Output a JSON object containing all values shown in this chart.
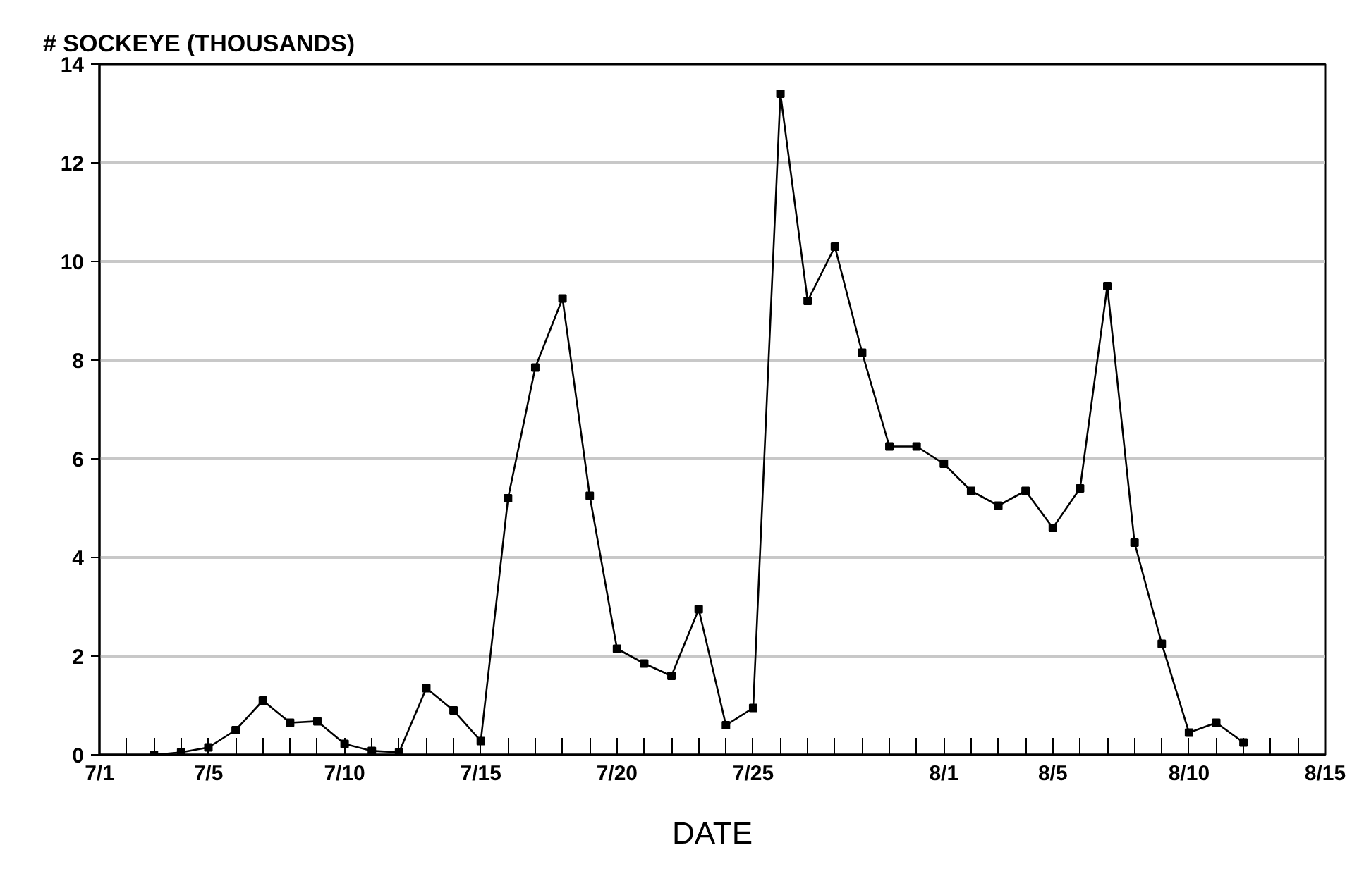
{
  "chart_data": {
    "type": "line",
    "ylabel": "# SOCKEYE (THOUSANDS)",
    "xlabel": "DATE",
    "x": [
      "--07-03",
      "--07-04",
      "--07-05",
      "--07-06",
      "--07-07",
      "--07-08",
      "--07-09",
      "--07-10",
      "--07-11",
      "--07-12",
      "--07-13",
      "--07-14",
      "--07-15",
      "--07-16",
      "--07-17",
      "--07-18",
      "--07-19",
      "--07-20",
      "--07-21",
      "--07-22",
      "--07-23",
      "--07-24",
      "--07-25",
      "--07-26",
      "--07-27",
      "--07-28",
      "--07-29",
      "--07-30",
      "--07-31",
      "--08-01",
      "--08-02",
      "--08-03",
      "--08-04",
      "--08-05",
      "--08-06",
      "--08-07",
      "--08-08",
      "--08-09",
      "--08-10",
      "--08-11",
      "--08-12"
    ],
    "series": [
      {
        "color": "#000000",
        "values": [
          0.0,
          0.05,
          0.15,
          0.5,
          1.1,
          0.65,
          0.68,
          0.22,
          0.08,
          0.05,
          1.35,
          0.9,
          0.28,
          5.2,
          7.85,
          9.25,
          5.25,
          2.15,
          1.85,
          1.6,
          2.95,
          0.6,
          0.95,
          13.4,
          9.2,
          10.3,
          8.15,
          6.25,
          6.25,
          5.9,
          5.35,
          5.05,
          5.35,
          4.6,
          5.4,
          9.5,
          4.3,
          2.25,
          0.45,
          0.65,
          0.25
        ]
      }
    ],
    "xlim": [
      "--07-01",
      "--08-15"
    ],
    "xticks": [
      {
        "value": "--07-01",
        "label": "7/1"
      },
      {
        "value": "--07-02",
        "label": null
      },
      {
        "value": "--07-03",
        "label": null
      },
      {
        "value": "--07-04",
        "label": null
      },
      {
        "value": "--07-05",
        "label": "7/5"
      },
      {
        "value": "--07-06",
        "label": null
      },
      {
        "value": "--07-07",
        "label": null
      },
      {
        "value": "--07-08",
        "label": null
      },
      {
        "value": "--07-09",
        "label": null
      },
      {
        "value": "--07-10",
        "label": "7/10"
      },
      {
        "value": "--07-11",
        "label": null
      },
      {
        "value": "--07-12",
        "label": null
      },
      {
        "value": "--07-13",
        "label": null
      },
      {
        "value": "--07-14",
        "label": null
      },
      {
        "value": "--07-15",
        "label": "7/15"
      },
      {
        "value": "--07-16",
        "label": null
      },
      {
        "value": "--07-17",
        "label": null
      },
      {
        "value": "--07-18",
        "label": null
      },
      {
        "value": "--07-19",
        "label": null
      },
      {
        "value": "--07-20",
        "label": "7/20"
      },
      {
        "value": "--07-21",
        "label": null
      },
      {
        "value": "--07-22",
        "label": null
      },
      {
        "value": "--07-23",
        "label": null
      },
      {
        "value": "--07-24",
        "label": null
      },
      {
        "value": "--07-25",
        "label": "7/25"
      },
      {
        "value": "--07-26",
        "label": null
      },
      {
        "value": "--07-27",
        "label": null
      },
      {
        "value": "--07-28",
        "label": null
      },
      {
        "value": "--07-29",
        "label": null
      },
      {
        "value": "--07-30",
        "label": null
      },
      {
        "value": "--07-31",
        "label": null
      },
      {
        "value": "--08-01",
        "label": "8/1"
      },
      {
        "value": "--08-02",
        "label": null
      },
      {
        "value": "--08-03",
        "label": null
      },
      {
        "value": "--08-04",
        "label": null
      },
      {
        "value": "--08-05",
        "label": "8/5"
      },
      {
        "value": "--08-06",
        "label": null
      },
      {
        "value": "--08-07",
        "label": null
      },
      {
        "value": "--08-08",
        "label": null
      },
      {
        "value": "--08-09",
        "label": null
      },
      {
        "value": "--08-10",
        "label": "8/10"
      },
      {
        "value": "--08-11",
        "label": null
      },
      {
        "value": "--08-12",
        "label": null
      },
      {
        "value": "--08-13",
        "label": null
      },
      {
        "value": "--08-14",
        "label": null
      },
      {
        "value": "--08-15",
        "label": "8/15"
      }
    ],
    "ylim": [
      0,
      14
    ],
    "yticks": [
      0,
      2,
      4,
      6,
      8,
      10,
      12,
      14
    ],
    "grid": "y",
    "marker": "square",
    "line_style": "solid"
  }
}
